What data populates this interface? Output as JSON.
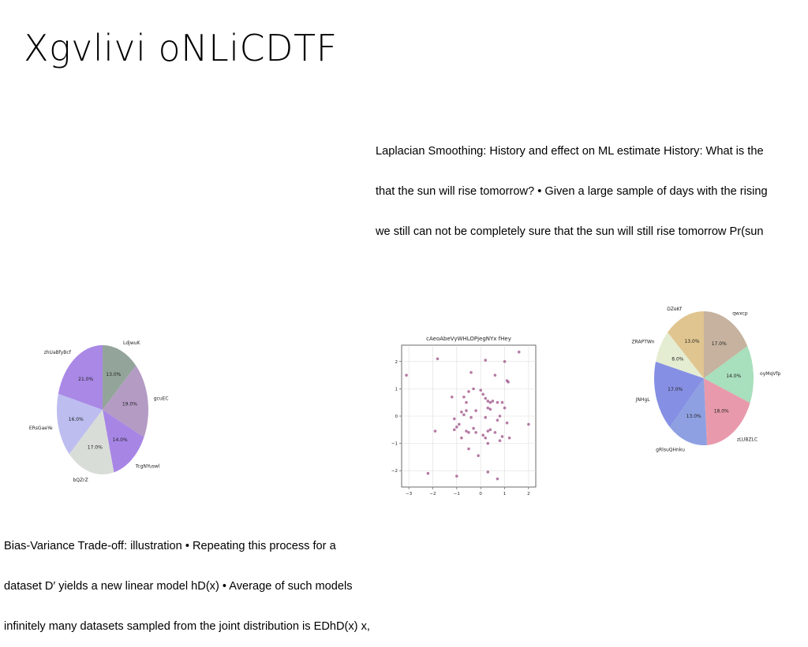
{
  "slide": {
    "title": "Xgvlivi oNLiCDTF",
    "paragraph_top": [
      "Laplacian Smoothing: History and effect on ML estimate History: What is the",
      "that the sun will rise tomorrow? • Given a large sample of days with the rising",
      "we still can not be completely sure that the sun will still rise tomorrow Pr(sun"
    ],
    "paragraph_bottom": [
      "Bias-Variance Trade-off: illustration • Repeating this process for a",
      "dataset D′ yields a new linear model hD(x) • Average of such models",
      "infinitely many datasets sampled from the joint distribution is EDhD(x) x,"
    ]
  },
  "chart_data": [
    {
      "type": "pie",
      "title": "",
      "labels": [
        "LdjwuK",
        "gcuEC",
        "TcgNYuswl",
        "bQZrZ",
        "ERsGaeYe",
        "zhUaBfyBcf"
      ],
      "values": [
        13.0,
        19.0,
        14.0,
        17.0,
        16.0,
        21.0
      ],
      "value_labels": [
        "13.0%",
        "19.0%",
        "14.0%",
        "17.0%",
        "16.0%",
        "21.0%"
      ],
      "colors": [
        "#93a59a",
        "#b49bc4",
        "#a785e5",
        "#d9ddd8",
        "#bdbdf0",
        "#a988e6"
      ],
      "start_angle_deg": 90,
      "direction": "clockwise"
    },
    {
      "type": "scatter",
      "title": "cAeoAbeVyWHLOPjegNYx fHey",
      "xlim": [
        -3.3,
        2.3
      ],
      "ylim": [
        -2.6,
        2.6
      ],
      "xticks": [
        -3,
        -2,
        -1,
        0,
        1,
        2
      ],
      "yticks": [
        -2,
        -1,
        0,
        1,
        2
      ],
      "grid": true,
      "marker_color": "#9c4f86",
      "x": [
        -3.1,
        -1.8,
        1.6,
        0.2,
        1.0,
        1.1,
        -0.4,
        0.6,
        1.15,
        -0.7,
        -0.3,
        0.0,
        0.1,
        0.9,
        -0.5,
        0.2,
        0.3,
        -1.2,
        -0.6,
        0.4,
        0.5,
        0.7,
        0.3,
        -0.6,
        0.4,
        -0.2,
        1.0,
        0.8,
        -0.7,
        -0.8,
        0.2,
        -0.4,
        -1.1,
        -0.9,
        0.7,
        1.1,
        2.0,
        -1.0,
        -0.6,
        -0.3,
        -0.2,
        0.4,
        0.3,
        -1.9,
        -0.5,
        -1.1,
        0.1,
        0.9,
        0.6,
        0.2,
        -0.8,
        1.2,
        -0.5,
        0.3,
        -0.1,
        0.8,
        -2.2,
        -1.0,
        0.3,
        0.7
      ],
      "y": [
        1.5,
        2.1,
        2.35,
        2.05,
        2.0,
        1.3,
        1.6,
        1.5,
        1.25,
        0.7,
        1.0,
        0.95,
        0.8,
        0.5,
        0.9,
        0.65,
        0.55,
        0.7,
        0.5,
        0.5,
        0.55,
        0.5,
        0.3,
        0.2,
        0.25,
        0.2,
        0.3,
        0.0,
        0.05,
        0.15,
        -0.05,
        -0.05,
        -0.1,
        -0.3,
        -0.15,
        -0.25,
        -0.3,
        -0.4,
        -0.55,
        -0.45,
        -0.6,
        -0.5,
        -0.55,
        -0.55,
        -0.6,
        -0.5,
        -0.7,
        -0.75,
        -0.6,
        -0.8,
        -0.8,
        -0.8,
        -1.2,
        -1.0,
        -1.45,
        -0.9,
        -2.1,
        -2.2,
        -2.05,
        -2.3
      ]
    },
    {
      "type": "pie",
      "title": "",
      "labels": [
        "qwxcp",
        "oyMqVfp",
        "zLUBZLC",
        "gRlsuQHnku",
        "JNHgL",
        "ZRAPTWn",
        "DZeKf"
      ],
      "values": [
        17.0,
        14.0,
        18.0,
        13.0,
        17.0,
        8.0,
        13.0
      ],
      "value_labels": [
        "17.0%",
        "14.0%",
        "18.0%",
        "13.0%",
        "17.0%",
        "8.0%",
        "13.0%"
      ],
      "colors": [
        "#c6b29e",
        "#a8dfbc",
        "#e89aac",
        "#8ea0e1",
        "#8590e4",
        "#e4edd2",
        "#e0c590"
      ],
      "start_angle_deg": 90,
      "direction": "clockwise"
    }
  ]
}
